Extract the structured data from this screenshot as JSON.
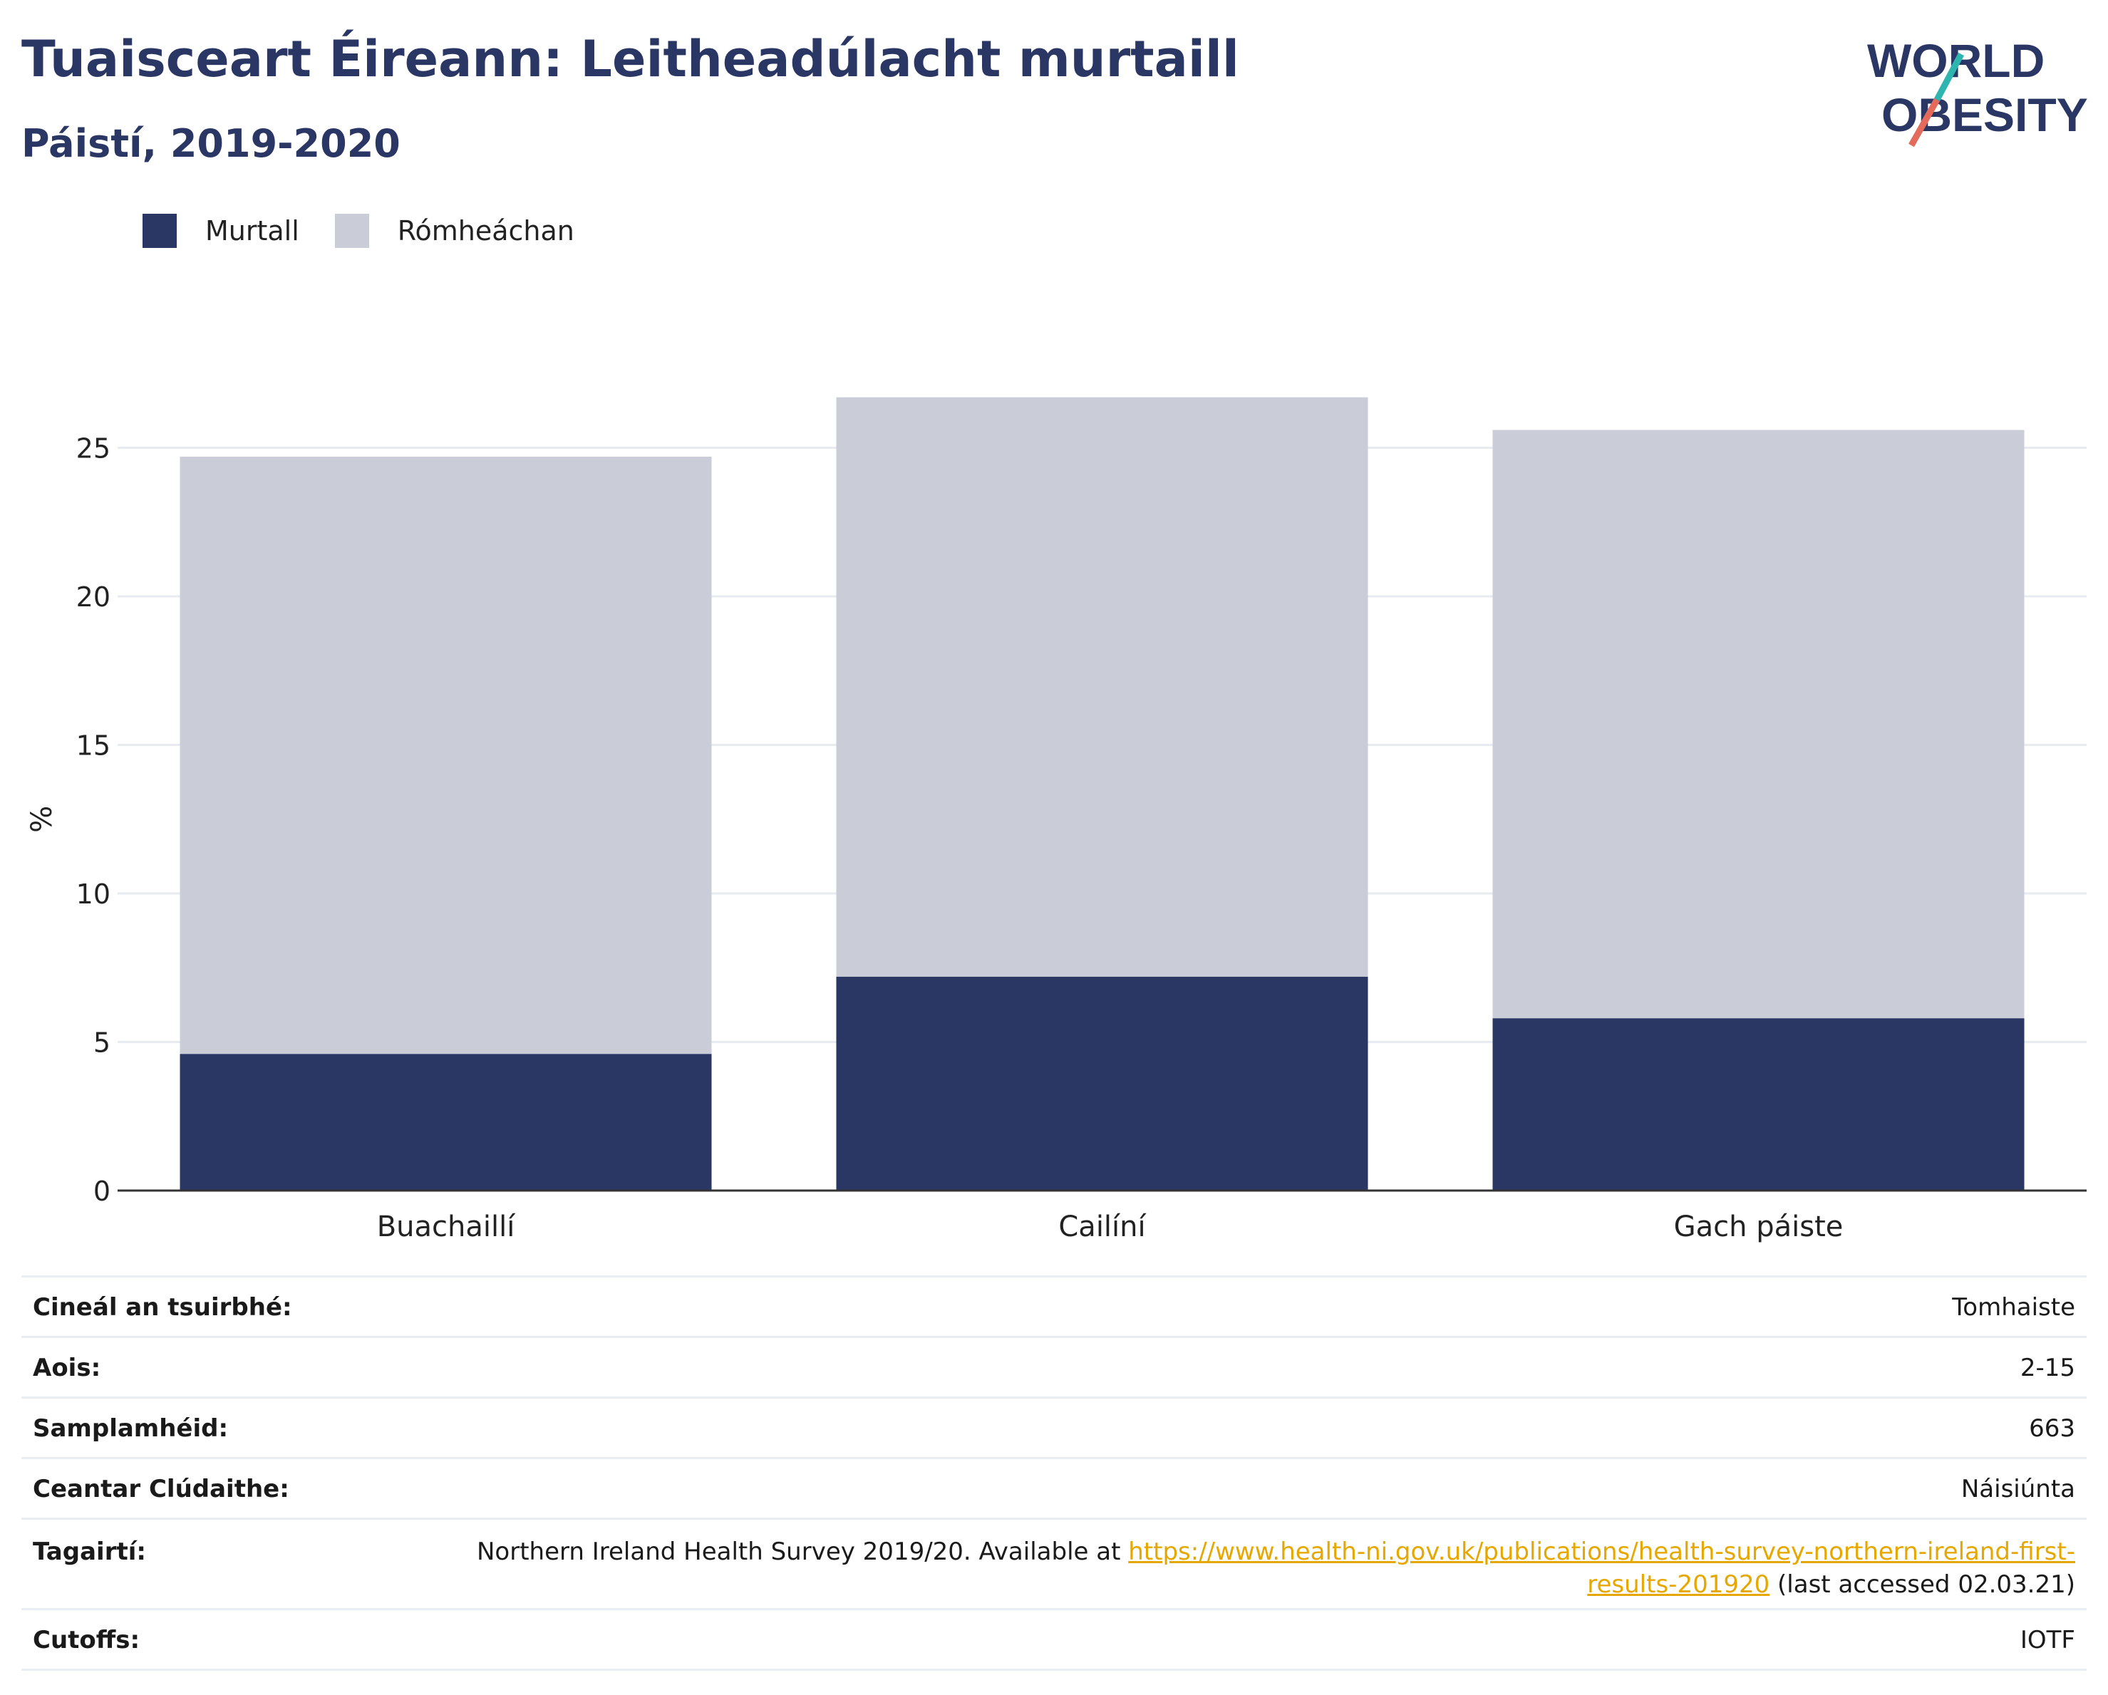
{
  "title": "Tuaisceart Éireann: Leitheadúlacht murtaill",
  "subtitle": "Páistí, 2019-2020",
  "logo": {
    "line1": "WORLD",
    "line2": "OBESITY"
  },
  "colors": {
    "obese": "#2a3663",
    "overweight": "#cacdd8",
    "title": "#2a3663",
    "link": "#e6a700"
  },
  "chart_data": {
    "type": "bar",
    "stacked": true,
    "categories": [
      "Buachaillí",
      "Cailíní",
      "Gach páiste"
    ],
    "series": [
      {
        "name": "Murtall",
        "values": [
          4.6,
          7.2,
          5.8
        ]
      },
      {
        "name": "Rómheáchan",
        "values": [
          20.1,
          19.5,
          19.8
        ]
      }
    ],
    "ylabel": "%",
    "xlabel": "",
    "ylim": [
      0,
      30
    ],
    "yticks": [
      0,
      5,
      10,
      15,
      20,
      25
    ],
    "grid": true,
    "legend_position": "top-left"
  },
  "meta": {
    "survey_type_label": "Cineál an tsuirbhé:",
    "survey_type_value": "Tomhaiste",
    "age_label": "Aois:",
    "age_value": "2-15",
    "sample_label": "Samplamhéid:",
    "sample_value": "663",
    "area_label": "Ceantar Clúdaithe:",
    "area_value": "Náisiúnta",
    "refs_label": "Tagairtí:",
    "refs_text": "Northern Ireland Health Survey 2019/20. Available at",
    "refs_link_1": "https://www.health-ni.gov.uk/publications/health-survey-northern-ireland-first-",
    "refs_link_2": "results-201920",
    "refs_suffix": "(last accessed 02.03.21)",
    "cutoffs_label": "Cutoffs:",
    "cutoffs_value": "IOTF"
  }
}
